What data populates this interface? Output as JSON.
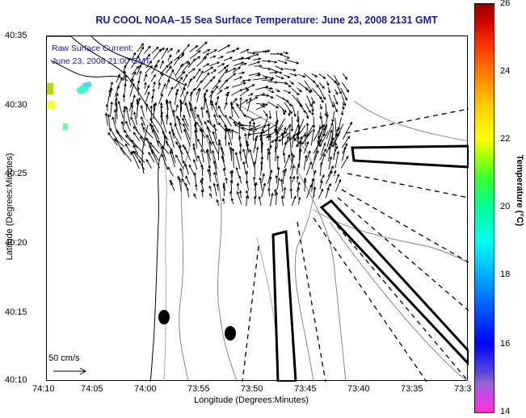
{
  "title": "RU COOL   NOAA–15  Sea Surface Temperature:  June 23, 2008 2131 GMT",
  "raw_current_label": "Raw Surface Current:",
  "raw_current_time": "June 23, 2008 21:00 GMT",
  "scale_label": "50 cm/s",
  "x_axis": {
    "label": "Longitude (Degrees:Minutes)",
    "ticks": [
      "74:10",
      "74:05",
      "74:00",
      "73:55",
      "73:50",
      "73:45",
      "73:40",
      "73:35",
      "73:3"
    ]
  },
  "y_axis": {
    "label": "Latitude (Degrees:Minutes)",
    "ticks": [
      "40:35",
      "40:30",
      "40:25",
      "40:20",
      "40:15",
      "40:10"
    ]
  },
  "colorbar": {
    "label": "Temperature (°C)",
    "ticks": [
      "26",
      "24",
      "22",
      "20",
      "18",
      "16",
      "14"
    ],
    "min": 14,
    "max": 26
  },
  "colors": {
    "title": "#1a1a9e",
    "land": "#ffffff",
    "coast": "#000000",
    "bathymetry": "#888888"
  }
}
